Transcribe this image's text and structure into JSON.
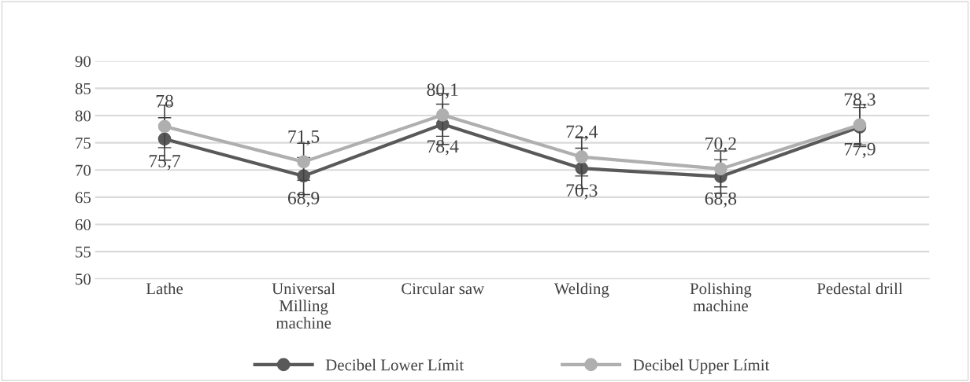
{
  "chart_data": {
    "type": "line",
    "categories": [
      "Lathe",
      "Universal\nMilling\nmachine",
      "Circular saw",
      "Welding",
      "Polishing\nmachine",
      "Pedestal drill"
    ],
    "series": [
      {
        "name": "Decibel Lower Límit",
        "color": "#595959",
        "values": [
          75.7,
          68.9,
          78.4,
          70.3,
          68.8,
          77.9
        ],
        "value_labels": [
          "75,7",
          "68,9",
          "78,4",
          "70,3",
          "68,8",
          "77,9"
        ],
        "errors": [
          3.9,
          3.4,
          3.7,
          3.7,
          3.1,
          3.6
        ]
      },
      {
        "name": "Decibel Upper Límit",
        "color": "#afafaf",
        "values": [
          78,
          71.5,
          80.1,
          72.4,
          70.2,
          78.3
        ],
        "value_labels": [
          "78",
          "71,5",
          "80,1",
          "72,4",
          "70,2",
          "78,3"
        ],
        "errors": [
          3.9,
          3.4,
          3.9,
          3.5,
          3.3,
          3.7
        ]
      }
    ],
    "ylim": [
      50,
      90
    ],
    "yticks": [
      50,
      55,
      60,
      65,
      70,
      75,
      80,
      85,
      90
    ],
    "grid": "y",
    "legend": "bottom",
    "marker": "circle",
    "line_style": "solid"
  }
}
